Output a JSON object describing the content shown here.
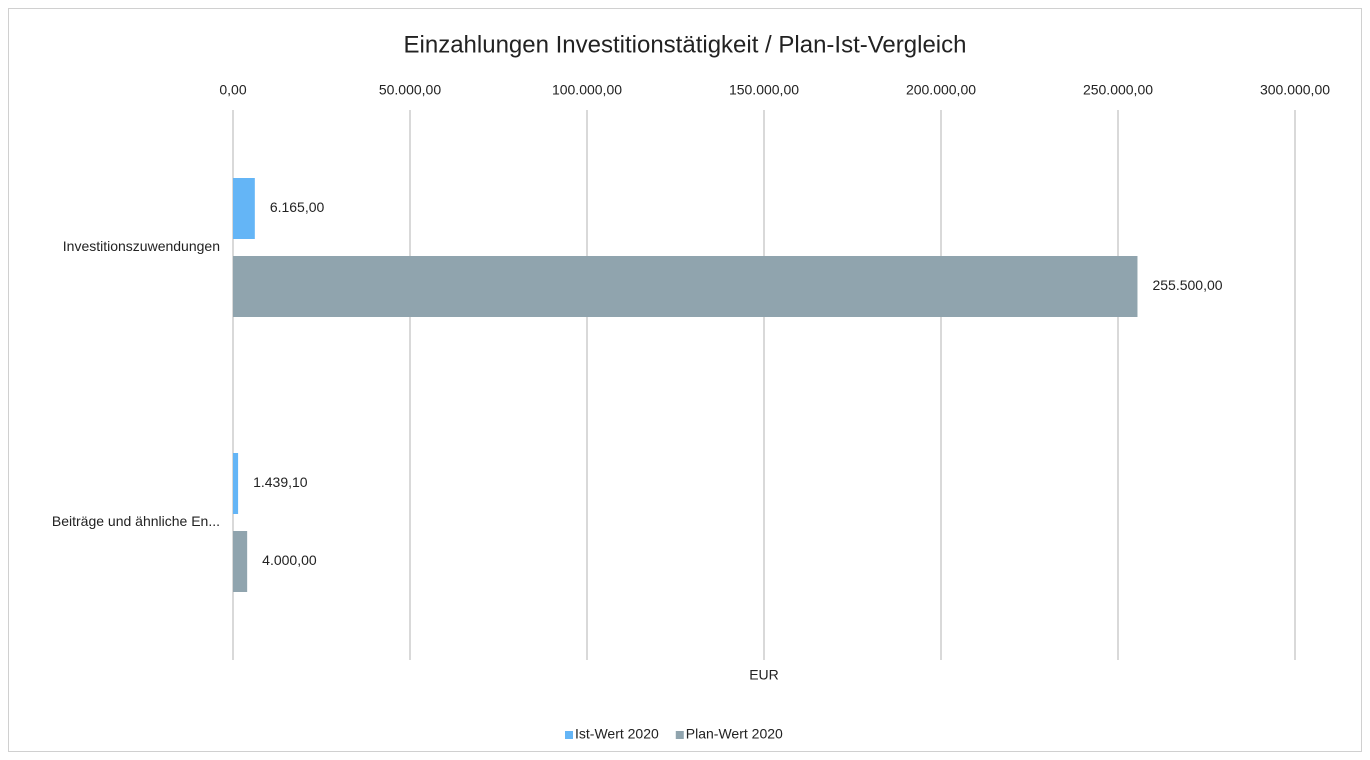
{
  "chart_data": {
    "type": "hbar",
    "title": "Einzahlungen Investitionstätigkeit / Plan-Ist-Vergleich",
    "x_label": "EUR",
    "categories": [
      "Investitionszuwendungen",
      "Beiträge und ähnliche En..."
    ],
    "series": [
      {
        "name": "Ist-Wert 2020",
        "color": "#64b5f6",
        "values": [
          6165,
          1439.1
        ],
        "value_labels": [
          "6.165,00",
          "1.439,10"
        ]
      },
      {
        "name": "Plan-Wert 2020",
        "color": "#90a4ae",
        "values": [
          255500,
          4000
        ],
        "value_labels": [
          "255.500,00",
          "4.000,00"
        ]
      }
    ],
    "xlim": [
      0,
      300000
    ],
    "xticks": [
      {
        "value": 0,
        "label": "0,00"
      },
      {
        "value": 50000,
        "label": "50.000,00"
      },
      {
        "value": 100000,
        "label": "100.000,00"
      },
      {
        "value": 150000,
        "label": "150.000,00"
      },
      {
        "value": 200000,
        "label": "200.000,00"
      },
      {
        "value": 250000,
        "label": "250.000,00"
      },
      {
        "value": 300000,
        "label": "300.000,00"
      }
    ],
    "grid": true,
    "legend": "bottom"
  }
}
